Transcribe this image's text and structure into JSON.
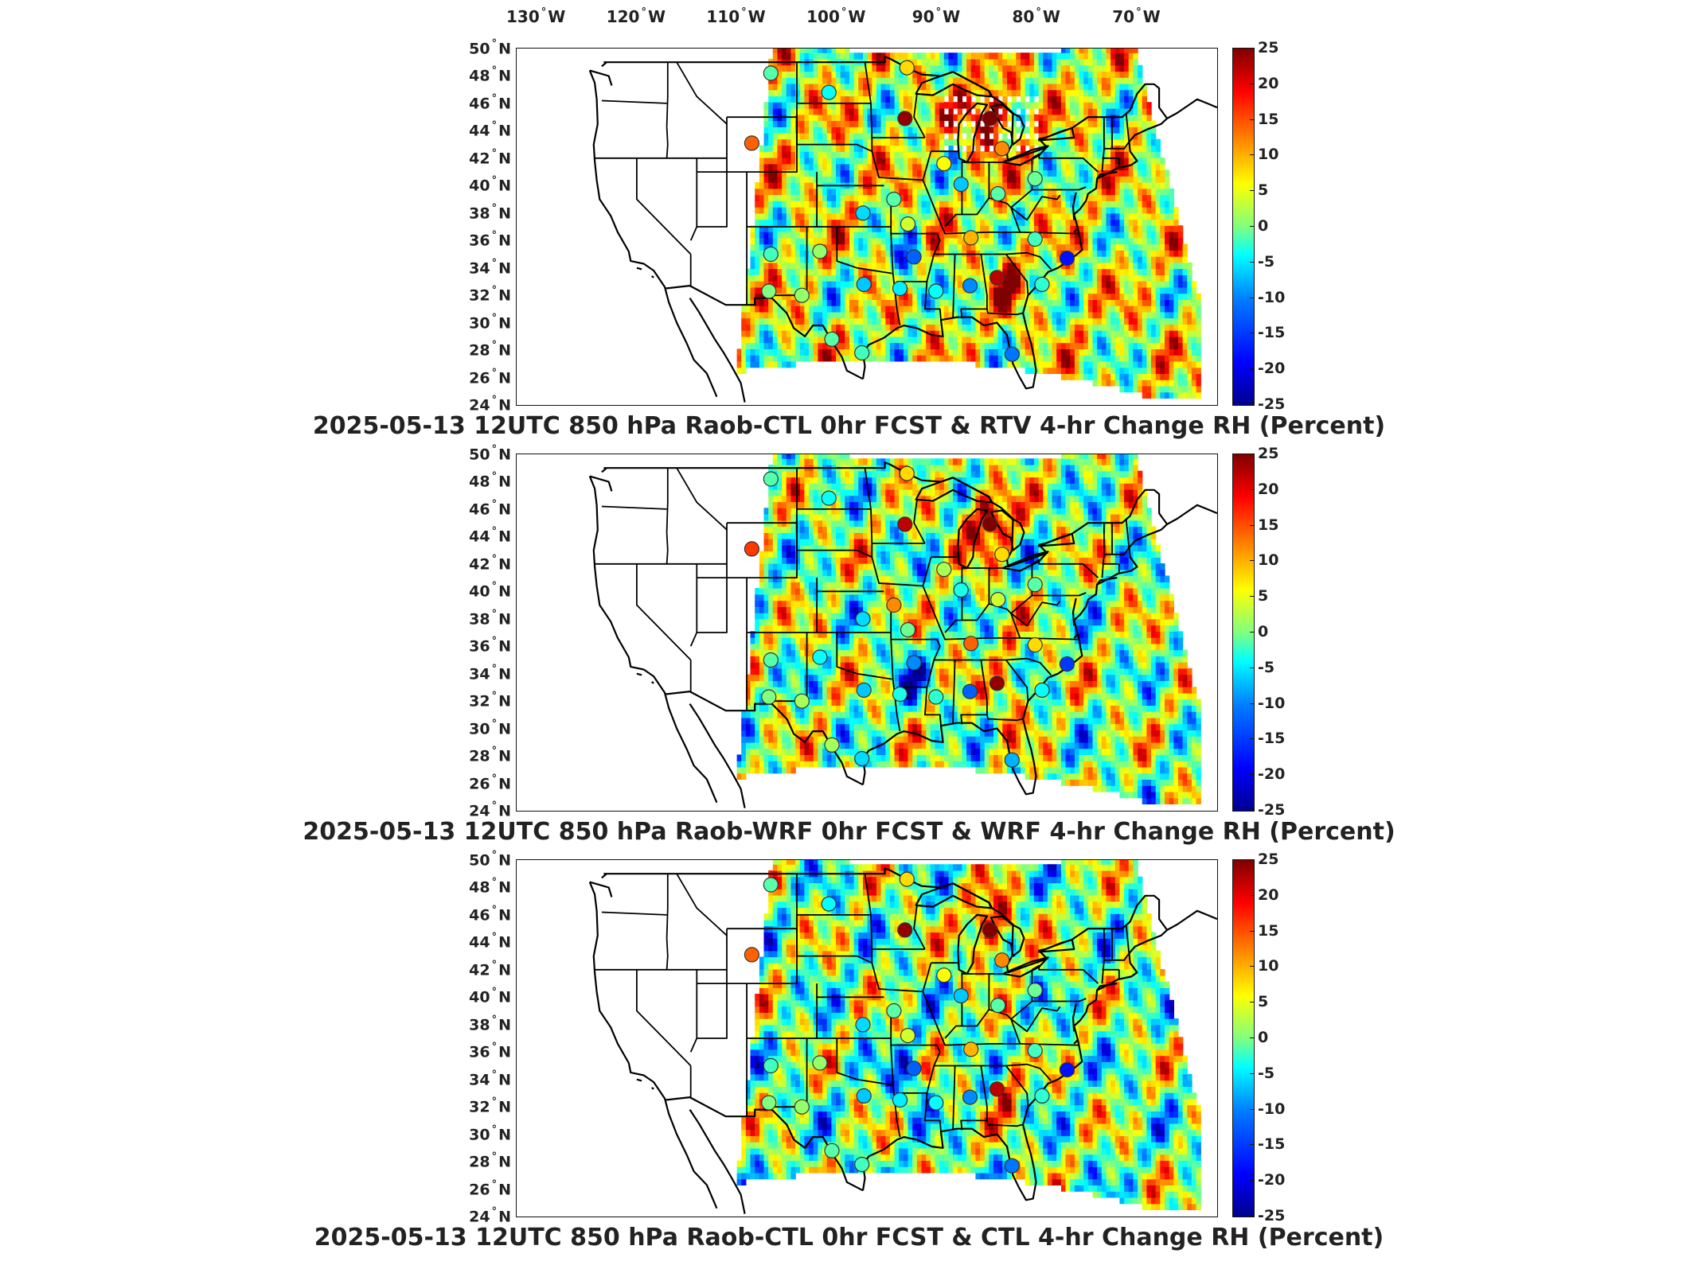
{
  "longitude_labels": [
    "130",
    "120",
    "110",
    "100",
    "90",
    "80",
    "70"
  ],
  "longitude_suffix": "W",
  "latitude_labels": [
    "50",
    "48",
    "46",
    "44",
    "42",
    "40",
    "38",
    "36",
    "34",
    "32",
    "30",
    "28",
    "26",
    "24"
  ],
  "latitude_suffix": "N",
  "degree_symbol": "°",
  "colorbar_ticks": [
    "25",
    "20",
    "15",
    "10",
    "5",
    "0",
    "-5",
    "-10",
    "-15",
    "-20",
    "-25"
  ],
  "colorbar_range": [
    -25,
    25
  ],
  "colormap": "jet",
  "colors": {
    "jet_low": "#00008f",
    "jet_mid": "#80ff80",
    "jet_high": "#800000",
    "outline": "#111111"
  },
  "panels": [
    {
      "title": "2025-05-13 12UTC 850 hPa Raob-CTL 0hr FCST & RTV 4-hr Change RH (Percent)",
      "field_base": 4,
      "stations": [
        {
          "lon": -106.6,
          "lat": 48.2,
          "value": -2
        },
        {
          "lon": -100.8,
          "lat": 46.8,
          "value": -6
        },
        {
          "lon": -93.0,
          "lat": 48.6,
          "value": 8
        },
        {
          "lon": -108.5,
          "lat": 43.1,
          "value": 14
        },
        {
          "lon": -93.2,
          "lat": 44.9,
          "value": 24
        },
        {
          "lon": -84.7,
          "lat": 44.9,
          "value": 25
        },
        {
          "lon": -83.5,
          "lat": 42.7,
          "value": 12
        },
        {
          "lon": -89.3,
          "lat": 41.6,
          "value": 6
        },
        {
          "lon": -87.6,
          "lat": 40.1,
          "value": -9
        },
        {
          "lon": -83.9,
          "lat": 39.4,
          "value": -2
        },
        {
          "lon": -80.2,
          "lat": 40.5,
          "value": -1
        },
        {
          "lon": -97.4,
          "lat": 38.0,
          "value": -8
        },
        {
          "lon": -94.3,
          "lat": 39.0,
          "value": -2
        },
        {
          "lon": -92.9,
          "lat": 37.2,
          "value": 4
        },
        {
          "lon": -86.6,
          "lat": 36.2,
          "value": 10
        },
        {
          "lon": -80.2,
          "lat": 36.1,
          "value": -3
        },
        {
          "lon": -106.6,
          "lat": 35.0,
          "value": -3
        },
        {
          "lon": -101.7,
          "lat": 35.2,
          "value": 1
        },
        {
          "lon": -92.3,
          "lat": 34.8,
          "value": -14
        },
        {
          "lon": -77.0,
          "lat": 34.7,
          "value": -18
        },
        {
          "lon": -103.5,
          "lat": 32.0,
          "value": 1
        },
        {
          "lon": -106.8,
          "lat": 32.3,
          "value": 0
        },
        {
          "lon": -97.3,
          "lat": 32.8,
          "value": -9
        },
        {
          "lon": -93.7,
          "lat": 32.5,
          "value": -7
        },
        {
          "lon": -90.1,
          "lat": 32.3,
          "value": -6
        },
        {
          "lon": -86.7,
          "lat": 32.7,
          "value": -12
        },
        {
          "lon": -84.0,
          "lat": 33.3,
          "value": 22
        },
        {
          "lon": -97.5,
          "lat": 27.8,
          "value": -3
        },
        {
          "lon": -82.5,
          "lat": 27.7,
          "value": -13
        },
        {
          "lon": -100.5,
          "lat": 28.8,
          "value": -2
        },
        {
          "lon": -79.5,
          "lat": 32.8,
          "value": -4
        }
      ]
    },
    {
      "title": "2025-05-13 12UTC 850 hPa Raob-WRF 0hr FCST & WRF 4-hr Change RH (Percent)",
      "field_base": 1,
      "stations": [
        {
          "lon": -106.6,
          "lat": 48.2,
          "value": -2
        },
        {
          "lon": -100.8,
          "lat": 46.8,
          "value": -6
        },
        {
          "lon": -93.0,
          "lat": 48.6,
          "value": 8
        },
        {
          "lon": -108.5,
          "lat": 43.1,
          "value": 16
        },
        {
          "lon": -93.2,
          "lat": 44.9,
          "value": 22
        },
        {
          "lon": -84.7,
          "lat": 44.9,
          "value": 25
        },
        {
          "lon": -83.5,
          "lat": 42.7,
          "value": 8
        },
        {
          "lon": -89.3,
          "lat": 41.6,
          "value": 2
        },
        {
          "lon": -87.6,
          "lat": 40.1,
          "value": -5
        },
        {
          "lon": -83.9,
          "lat": 39.4,
          "value": 4
        },
        {
          "lon": -80.2,
          "lat": 40.5,
          "value": -2
        },
        {
          "lon": -97.4,
          "lat": 38.0,
          "value": -8
        },
        {
          "lon": -94.3,
          "lat": 39.0,
          "value": 12
        },
        {
          "lon": -92.9,
          "lat": 37.2,
          "value": -1
        },
        {
          "lon": -86.6,
          "lat": 36.2,
          "value": 14
        },
        {
          "lon": -80.2,
          "lat": 36.1,
          "value": 8
        },
        {
          "lon": -106.6,
          "lat": 35.0,
          "value": -2
        },
        {
          "lon": -101.7,
          "lat": 35.2,
          "value": -6
        },
        {
          "lon": -92.3,
          "lat": 34.8,
          "value": -12
        },
        {
          "lon": -77.0,
          "lat": 34.7,
          "value": -16
        },
        {
          "lon": -103.5,
          "lat": 32.0,
          "value": 2
        },
        {
          "lon": -106.8,
          "lat": 32.3,
          "value": 0
        },
        {
          "lon": -97.3,
          "lat": 32.8,
          "value": -9
        },
        {
          "lon": -93.7,
          "lat": 32.5,
          "value": -5
        },
        {
          "lon": -90.1,
          "lat": 32.3,
          "value": -4
        },
        {
          "lon": -86.7,
          "lat": 32.7,
          "value": -14
        },
        {
          "lon": -84.0,
          "lat": 33.3,
          "value": 24
        },
        {
          "lon": -97.5,
          "lat": 27.8,
          "value": -8
        },
        {
          "lon": -82.5,
          "lat": 27.7,
          "value": -10
        },
        {
          "lon": -100.5,
          "lat": 28.8,
          "value": 2
        },
        {
          "lon": -79.5,
          "lat": 32.8,
          "value": -6
        }
      ]
    },
    {
      "title": "2025-05-13 12UTC 850 hPa Raob-CTL 0hr FCST & CTL 4-hr Change RH (Percent)",
      "field_base": 0,
      "stations": [
        {
          "lon": -106.6,
          "lat": 48.2,
          "value": -2
        },
        {
          "lon": -100.8,
          "lat": 46.8,
          "value": -6
        },
        {
          "lon": -93.0,
          "lat": 48.6,
          "value": 8
        },
        {
          "lon": -108.5,
          "lat": 43.1,
          "value": 14
        },
        {
          "lon": -93.2,
          "lat": 44.9,
          "value": 24
        },
        {
          "lon": -84.7,
          "lat": 44.9,
          "value": 25
        },
        {
          "lon": -83.5,
          "lat": 42.7,
          "value": 12
        },
        {
          "lon": -89.3,
          "lat": 41.6,
          "value": 6
        },
        {
          "lon": -87.6,
          "lat": 40.1,
          "value": -9
        },
        {
          "lon": -83.9,
          "lat": 39.4,
          "value": -2
        },
        {
          "lon": -80.2,
          "lat": 40.5,
          "value": -1
        },
        {
          "lon": -97.4,
          "lat": 38.0,
          "value": -8
        },
        {
          "lon": -94.3,
          "lat": 39.0,
          "value": -2
        },
        {
          "lon": -92.9,
          "lat": 37.2,
          "value": 4
        },
        {
          "lon": -86.6,
          "lat": 36.2,
          "value": 10
        },
        {
          "lon": -80.2,
          "lat": 36.1,
          "value": -3
        },
        {
          "lon": -106.6,
          "lat": 35.0,
          "value": -3
        },
        {
          "lon": -101.7,
          "lat": 35.2,
          "value": 1
        },
        {
          "lon": -92.3,
          "lat": 34.8,
          "value": -14
        },
        {
          "lon": -77.0,
          "lat": 34.7,
          "value": -18
        },
        {
          "lon": -103.5,
          "lat": 32.0,
          "value": 1
        },
        {
          "lon": -106.8,
          "lat": 32.3,
          "value": 0
        },
        {
          "lon": -97.3,
          "lat": 32.8,
          "value": -9
        },
        {
          "lon": -93.7,
          "lat": 32.5,
          "value": -7
        },
        {
          "lon": -90.1,
          "lat": 32.3,
          "value": -6
        },
        {
          "lon": -86.7,
          "lat": 32.7,
          "value": -12
        },
        {
          "lon": -84.0,
          "lat": 33.3,
          "value": 22
        },
        {
          "lon": -97.5,
          "lat": 27.8,
          "value": -3
        },
        {
          "lon": -82.5,
          "lat": 27.7,
          "value": -13
        },
        {
          "lon": -100.5,
          "lat": 28.8,
          "value": -2
        },
        {
          "lon": -79.5,
          "lat": 32.8,
          "value": -4
        }
      ]
    }
  ]
}
